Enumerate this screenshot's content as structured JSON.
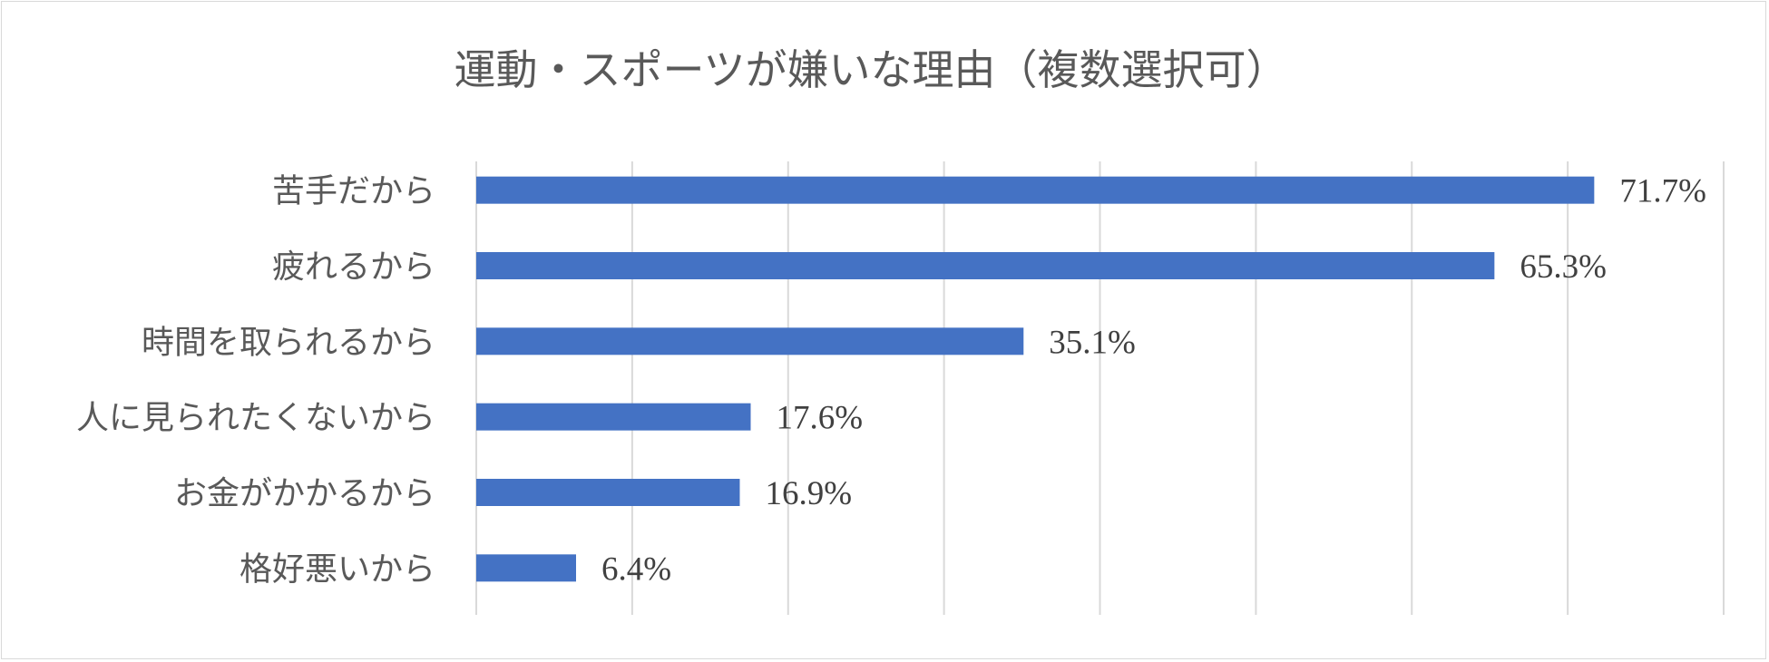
{
  "chart_data": {
    "type": "bar",
    "orientation": "horizontal",
    "title": "運動・スポーツが嫌いな理由（複数選択可）",
    "categories": [
      "苦手だから",
      "疲れるから",
      "時間を取られるから",
      "人に見られたくないから",
      "お金がかかるから",
      "格好悪いから"
    ],
    "values": [
      71.7,
      65.3,
      35.1,
      17.6,
      16.9,
      6.4
    ],
    "value_labels": [
      "71.7%",
      "65.3%",
      "35.1%",
      "17.6%",
      "16.9%",
      "6.4%"
    ],
    "xlim": [
      0,
      80
    ],
    "grid": true,
    "legend": "none",
    "bar_color": "#4472C4"
  }
}
